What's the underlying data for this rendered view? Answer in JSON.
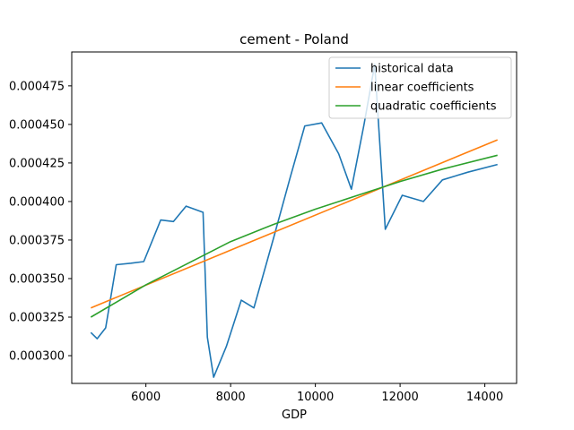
{
  "chart_data": {
    "type": "line",
    "title": "cement - Poland",
    "xlabel": "GDP",
    "ylabel": "",
    "xlim": [
      4250,
      14750
    ],
    "ylim": [
      0.000282,
      0.000497
    ],
    "xticks": [
      6000,
      8000,
      10000,
      12000,
      14000
    ],
    "xtick_labels": [
      "6000",
      "8000",
      "10000",
      "12000",
      "14000"
    ],
    "yticks": [
      0.0003,
      0.000325,
      0.00035,
      0.000375,
      0.0004,
      0.000425,
      0.00045,
      0.000475
    ],
    "ytick_labels": [
      "0.000300",
      "0.000325",
      "0.000350",
      "0.000375",
      "0.000400",
      "0.000425",
      "0.000450",
      "0.000475"
    ],
    "grid": false,
    "legend_position": "top-right",
    "series": [
      {
        "name": "historical data",
        "color": "#1f77b4",
        "x": [
          4700,
          4850,
          5050,
          5300,
          5650,
          5950,
          6350,
          6650,
          6950,
          7350,
          7450,
          7600,
          7900,
          8250,
          8550,
          9000,
          9400,
          9750,
          10150,
          10550,
          10850,
          11150,
          11400,
          11650,
          12050,
          12550,
          13000,
          13600,
          14300
        ],
        "y": [
          0.000315,
          0.000311,
          0.000318,
          0.000359,
          0.00036,
          0.000361,
          0.000388,
          0.000387,
          0.000397,
          0.000393,
          0.000312,
          0.000286,
          0.000306,
          0.000336,
          0.000331,
          0.000375,
          0.000415,
          0.000449,
          0.000451,
          0.000431,
          0.000408,
          0.00045,
          0.000489,
          0.000382,
          0.000404,
          0.0004,
          0.000414,
          0.000419,
          0.000424
        ]
      },
      {
        "name": "linear coefficients",
        "color": "#ff7f0e",
        "x": [
          4700,
          14300
        ],
        "y": [
          0.000331,
          0.00044
        ]
      },
      {
        "name": "quadratic coefficients",
        "color": "#2ca02c",
        "x": [
          4700,
          6000,
          7000,
          8000,
          9000,
          10000,
          11000,
          12000,
          13000,
          14300
        ],
        "y": [
          0.000325,
          0.000346,
          0.00036,
          0.000374,
          0.000385,
          0.000395,
          0.000404,
          0.000413,
          0.000421,
          0.00043
        ]
      }
    ]
  }
}
